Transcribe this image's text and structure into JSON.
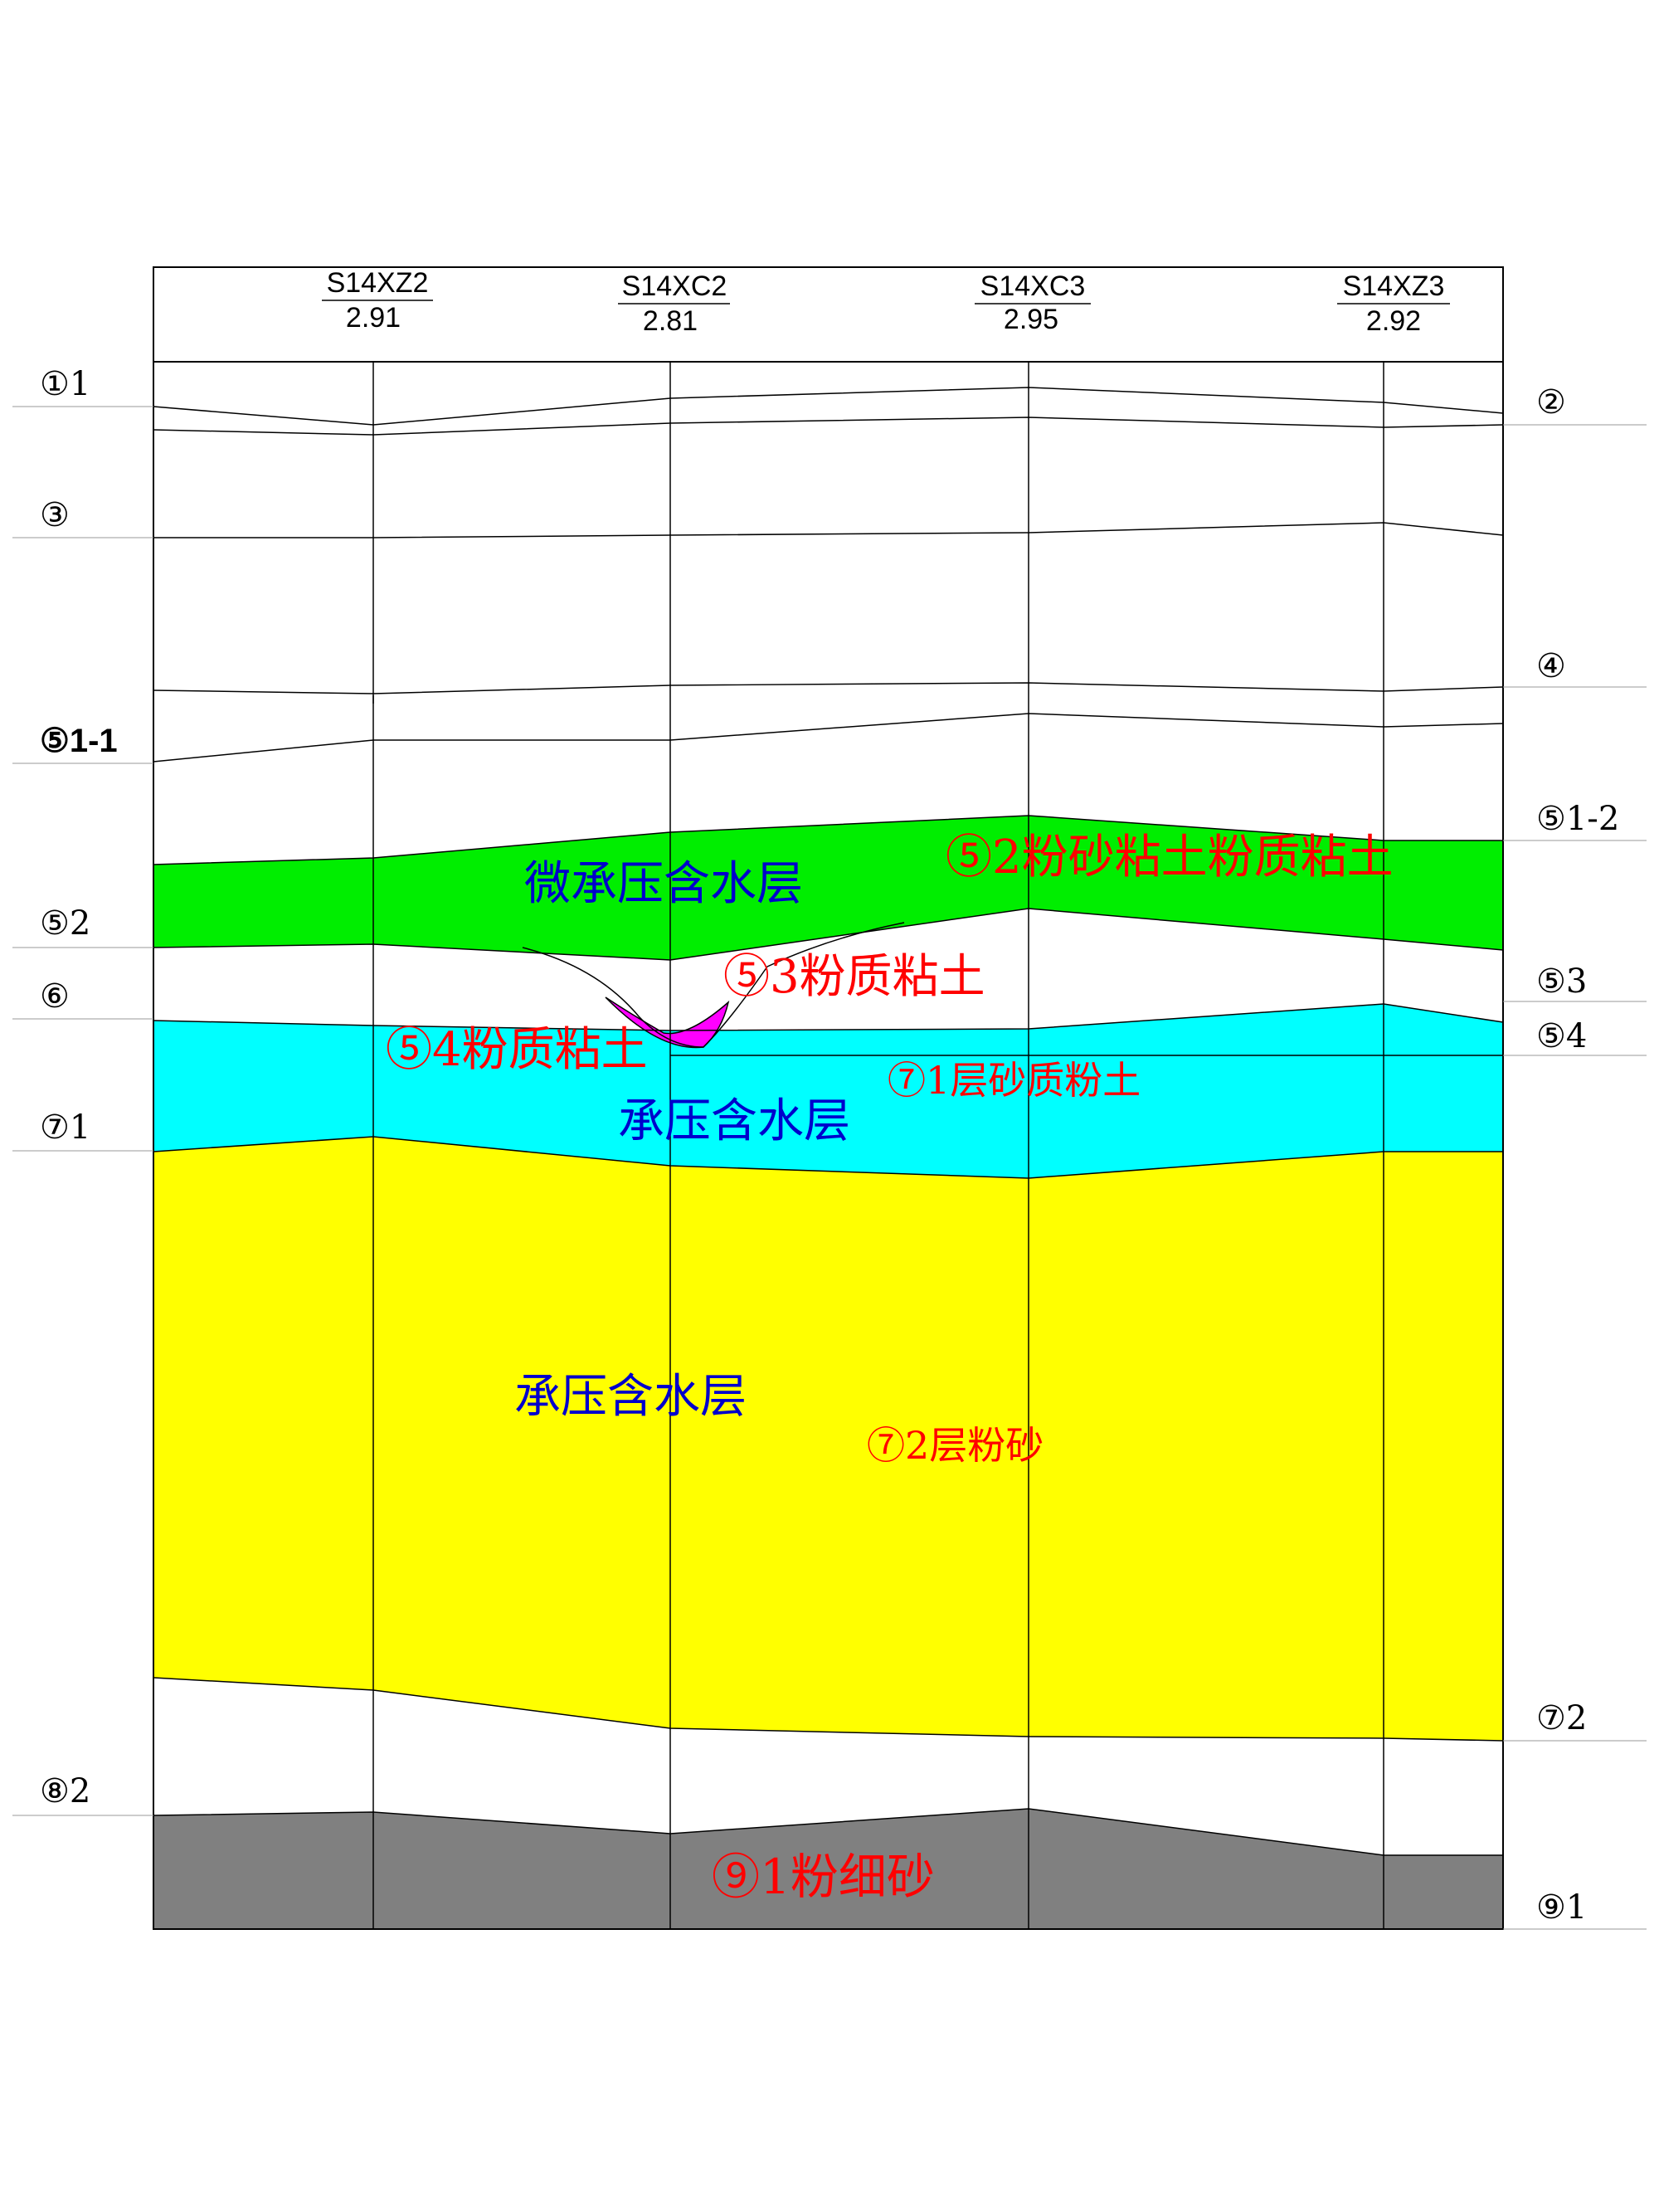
{
  "boreholes": [
    {
      "id": "S14XZ2",
      "elevation": "2.91"
    },
    {
      "id": "S14XC2",
      "elevation": "2.81"
    },
    {
      "id": "S14XC3",
      "elevation": "2.95"
    },
    {
      "id": "S14XZ3",
      "elevation": "2.92"
    }
  ],
  "left_labels": {
    "l1": "①1",
    "l3": "③",
    "l51_1": "⑤1-1",
    "l52": "⑤2",
    "l6": "⑥",
    "l71": "⑦1",
    "l82": "⑧2"
  },
  "right_labels": {
    "r2": "②",
    "r4": "④",
    "r51_2": "⑤1-2",
    "r53": "⑤3",
    "r54": "⑤4",
    "r72": "⑦2",
    "r91": "⑨1"
  },
  "annotations": {
    "aquifer_micro": "微承压含水层",
    "layer_52": "⑤2粉砂粘土粉质粘土",
    "layer_53": "⑤3粉质粘土",
    "layer_54": "⑤4粉质粘土",
    "layer_71": "⑦1层砂质粉土",
    "aquifer_confined_1": "承压含水层",
    "aquifer_confined_2": "承压含水层",
    "layer_72": "⑦2层粉砂",
    "layer_91": "⑨1粉细砂"
  },
  "colors": {
    "layer_52": "#00ee00",
    "layer_54": "#ff00ff",
    "layer_71": "#00ffff",
    "layer_72": "#ffff00",
    "layer_91": "#808080",
    "text_red": "#ff0000",
    "text_blue": "#0000cc"
  }
}
